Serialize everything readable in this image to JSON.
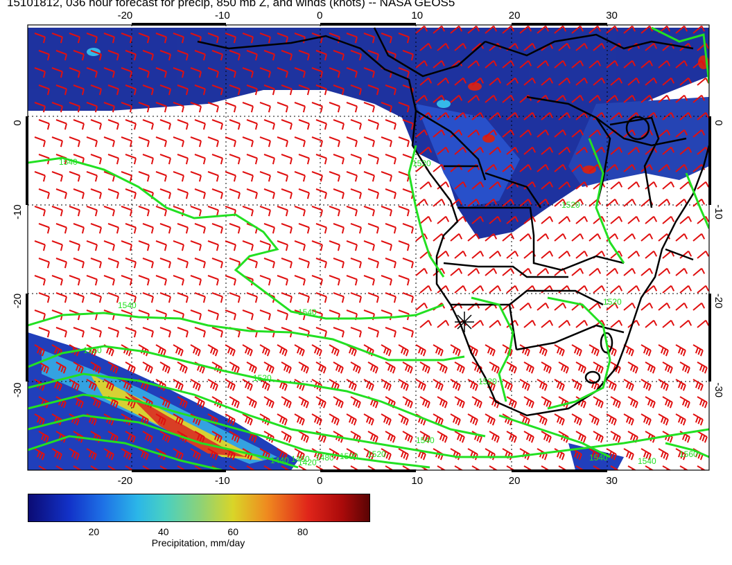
{
  "title": "15101812, 036 hour forecast for precip, 850 mb Z, and winds (knots) -- NASA GEOS5",
  "axes": {
    "lon_ticks": [
      "-20",
      "-10",
      "0",
      "10",
      "20",
      "30"
    ],
    "lat_ticks": [
      "0",
      "-10",
      "-20",
      "-30"
    ],
    "lon_range": [
      -30,
      40
    ],
    "lat_range": [
      -39,
      11
    ]
  },
  "contours": {
    "color": "#22e022",
    "labels": [
      "1540",
      "1520",
      "1540",
      "1540",
      "1520",
      "1520",
      "1540",
      "1520",
      "1500",
      "1480",
      "1460",
      "1440",
      "1420",
      "1540",
      "1560",
      "1540",
      "1520",
      "1520",
      "1520"
    ]
  },
  "wind_barb_color": "#e01010",
  "boundary_color": "#000000",
  "colorbar": {
    "ticks": [
      "20",
      "40",
      "60",
      "80"
    ],
    "tick_values": [
      20,
      40,
      60,
      80
    ],
    "range": [
      1,
      99
    ],
    "label": "Precipitation, mm/day"
  }
}
